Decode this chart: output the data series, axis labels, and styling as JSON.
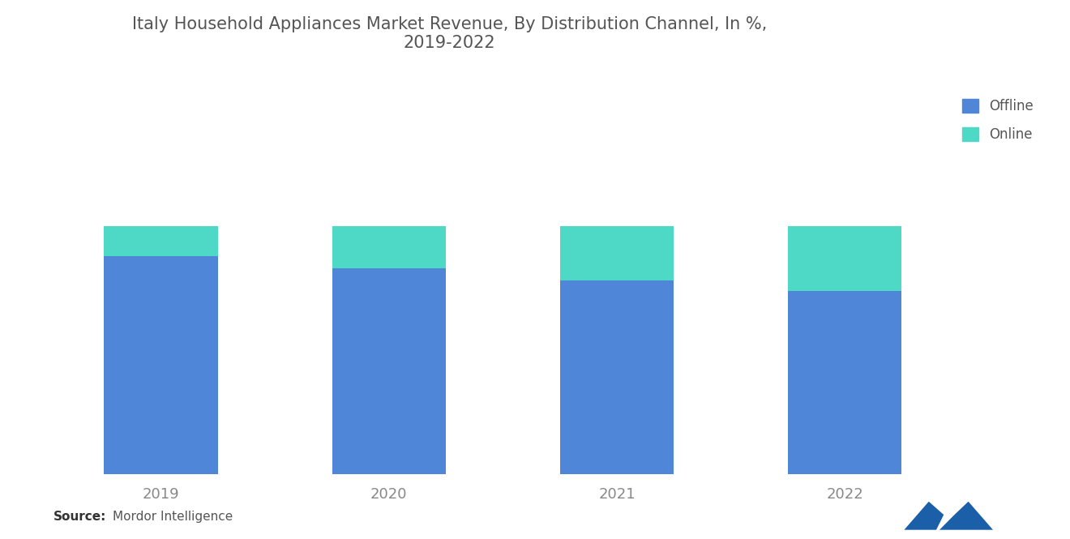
{
  "title": "Italy Household Appliances Market Revenue, By Distribution Channel, In %,\n2019-2022",
  "years": [
    "2019",
    "2020",
    "2021",
    "2022"
  ],
  "offline": [
    88,
    83,
    78,
    74
  ],
  "online": [
    12,
    17,
    22,
    26
  ],
  "offline_color": "#4f86d8",
  "online_color": "#4dd9c5",
  "background_color": "#ffffff",
  "legend_labels": [
    "Offline",
    "Online"
  ],
  "source_bold": "Source:",
  "source_normal": " Mordor Intelligence",
  "title_fontsize": 15,
  "tick_fontsize": 13,
  "legend_fontsize": 12,
  "bar_width": 0.5,
  "ylim": [
    0,
    165
  ],
  "title_color": "#555555"
}
